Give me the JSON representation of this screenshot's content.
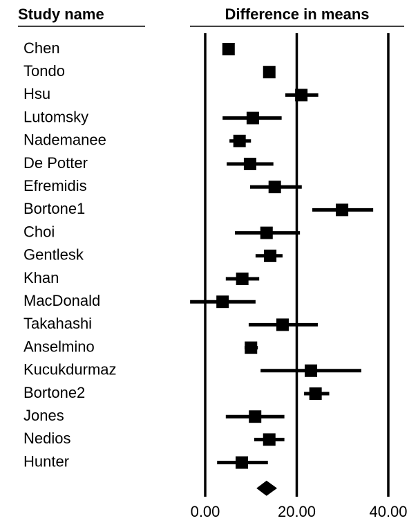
{
  "chart_data": {
    "type": "forest",
    "label_header": "Study name",
    "xlabel": "Difference in means",
    "categories": [
      "Chen",
      "Tondo",
      "Hsu",
      "Lutomsky",
      "Nademanee",
      "De Potter",
      "Efremidis",
      "Bortone1",
      "Choi",
      "Gentlesk",
      "Khan",
      "MacDonald",
      "Takahashi",
      "Anselmino",
      "Kucukdurmaz",
      "Bortone2",
      "Jones",
      "Nedios",
      "Hunter"
    ],
    "values": [
      5.1,
      14.0,
      21.0,
      10.4,
      7.5,
      9.8,
      15.2,
      29.9,
      13.4,
      14.2,
      8.1,
      3.8,
      16.9,
      10.0,
      23.1,
      24.1,
      10.9,
      14.0,
      8.0
    ],
    "lower": [
      4.0,
      13.3,
      17.5,
      3.8,
      5.3,
      4.7,
      9.8,
      23.4,
      6.5,
      11.0,
      4.5,
      -3.3,
      9.5,
      8.6,
      12.1,
      21.6,
      4.5,
      10.7,
      2.6
    ],
    "upper": [
      6.3,
      14.7,
      24.7,
      16.7,
      10.0,
      14.9,
      21.1,
      36.7,
      20.7,
      16.9,
      11.8,
      11.0,
      24.6,
      11.5,
      34.1,
      27.1,
      17.3,
      17.3,
      13.7
    ],
    "summary": {
      "value": 13.4,
      "lower": 11.2,
      "upper": 15.7
    },
    "color": "#000000",
    "xlim": [
      -4,
      44
    ],
    "xticks": [
      {
        "value": 0,
        "label": "0.00"
      },
      {
        "value": 20,
        "label": "20.00"
      },
      {
        "value": 40,
        "label": "40.00"
      }
    ]
  }
}
